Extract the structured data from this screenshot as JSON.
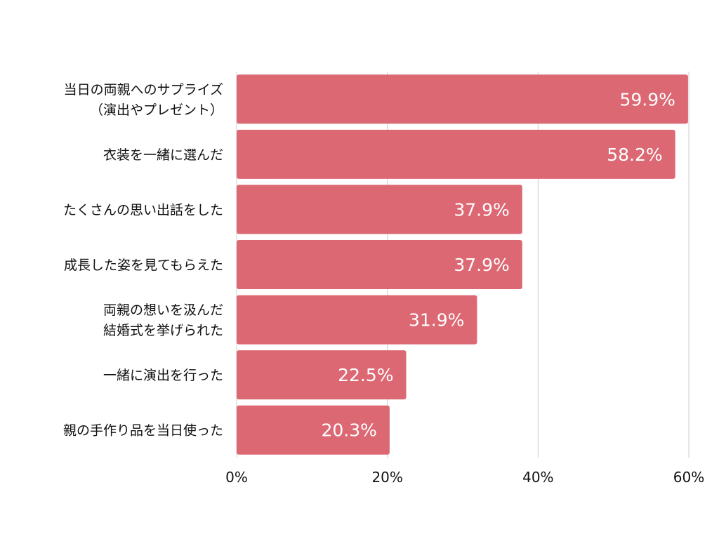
{
  "chart_data": {
    "type": "bar",
    "orientation": "horizontal",
    "categories": [
      [
        "当日の両親へのサプライズ",
        "（演出やプレゼント）"
      ],
      [
        "衣装を一緒に選んだ"
      ],
      [
        "たくさんの思い出話をした"
      ],
      [
        "成長した姿を見てもらえた"
      ],
      [
        "両親の想いを汲んだ",
        "結婚式を挙げられた"
      ],
      [
        "一緒に演出を行った"
      ],
      [
        "親の手作り品を当日使った"
      ]
    ],
    "values": [
      59.9,
      58.2,
      37.9,
      37.9,
      31.9,
      22.5,
      20.3
    ],
    "value_labels": [
      "59.9%",
      "58.2%",
      "37.9%",
      "37.9%",
      "31.9%",
      "22.5%",
      "20.3%"
    ],
    "x_ticks": [
      0,
      20,
      40,
      60
    ],
    "x_tick_labels": [
      "0%",
      "20%",
      "40%",
      "60%"
    ],
    "xlim": [
      0,
      60
    ],
    "grid": true,
    "colors": {
      "bar": "#dc6873",
      "grid": "#cccccc",
      "text": "#111111",
      "value_text": "#ffffff"
    }
  }
}
